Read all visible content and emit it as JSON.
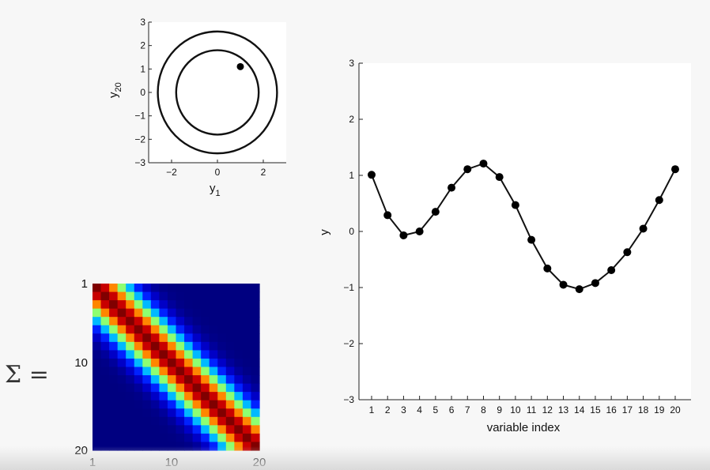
{
  "chart_data": [
    {
      "type": "scatter",
      "name": "phase-plot",
      "xlabel": "y",
      "xlabel_sub": "1",
      "ylabel": "y",
      "ylabel_sub": "20",
      "xlim": [
        -3,
        3
      ],
      "ylim": [
        -3,
        3
      ],
      "xticks": [
        -2,
        0,
        2
      ],
      "yticks": [
        -3,
        -2,
        -1,
        0,
        1,
        2,
        3
      ],
      "circles": [
        1.8,
        2.6
      ],
      "point": [
        1.0,
        1.1
      ]
    },
    {
      "type": "heatmap",
      "name": "covariance",
      "left_label": "Σ =",
      "n": 20,
      "yticks": [
        "1",
        "10",
        "20"
      ],
      "xticks": [
        "1",
        "10",
        "20"
      ],
      "lengthscale": 2.6
    },
    {
      "type": "line",
      "name": "sample",
      "xlabel": "variable index",
      "ylabel": "y",
      "ylim": [
        -3,
        3
      ],
      "yticks": [
        -3,
        -2,
        -1,
        0,
        1,
        2,
        3
      ],
      "x": [
        1,
        2,
        3,
        4,
        5,
        6,
        7,
        8,
        9,
        10,
        11,
        12,
        13,
        14,
        15,
        16,
        17,
        18,
        19,
        20
      ],
      "y": [
        1.01,
        0.29,
        -0.07,
        0.0,
        0.35,
        0.78,
        1.11,
        1.21,
        0.97,
        0.47,
        -0.15,
        -0.66,
        -0.95,
        -1.03,
        -0.92,
        -0.69,
        -0.37,
        0.05,
        0.56,
        1.11
      ]
    }
  ]
}
